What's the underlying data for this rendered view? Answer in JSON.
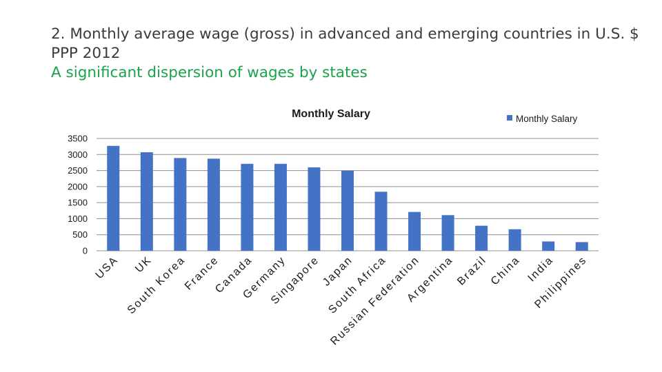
{
  "header": {
    "title": "2. Monthly average wage (gross) in advanced and emerging countries in U.S. $ PPP 2012",
    "subtitle": "A significant dispersion of wages by states"
  },
  "colors": {
    "bar": "#4472c4",
    "grid": "#8c8c8c",
    "title_text": "#3b3b3b",
    "subtitle_text": "#1aa34a"
  },
  "chart_data": {
    "type": "bar",
    "title": "Monthly Salary",
    "legend_position": "top-right",
    "grid": true,
    "ylim": [
      0,
      3500
    ],
    "yticks": [
      0,
      500,
      1000,
      1500,
      2000,
      2500,
      3000,
      3500
    ],
    "categories": [
      "USA",
      "UK",
      "South Korea",
      "France",
      "Canada",
      "Germany",
      "Singapore",
      "Japan",
      "South Africa",
      "Russian Federation",
      "Argentina",
      "Brazil",
      "China",
      "India",
      "Philippines"
    ],
    "series": [
      {
        "name": "Monthly Salary",
        "values": [
          3270,
          3070,
          2890,
          2870,
          2710,
          2710,
          2600,
          2500,
          1840,
          1210,
          1110,
          780,
          670,
          290,
          270
        ]
      }
    ]
  }
}
